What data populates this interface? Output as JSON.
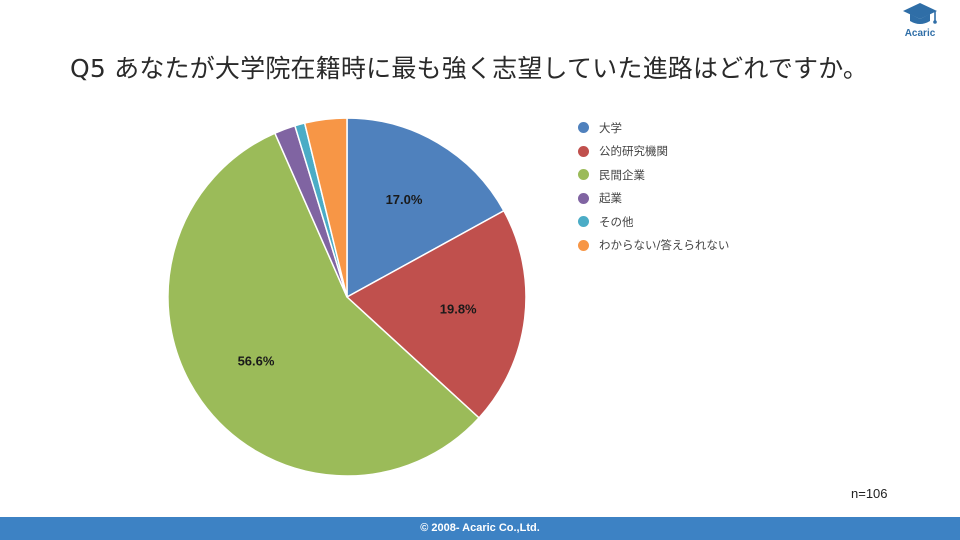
{
  "header": {
    "logo_text": "Acaric",
    "title": "Q5 あなたが大学院在籍時に最も強く志望していた進路はどれですか。"
  },
  "chart_data": {
    "type": "pie",
    "title": "Q5 あなたが大学院在籍時に最も強く志望していた進路はどれですか。",
    "categories": [
      "大学",
      "公的研究機関",
      "民間企業",
      "起業",
      "その他",
      "わからない/答えられない"
    ],
    "values": [
      17.0,
      19.8,
      56.6,
      1.9,
      0.9,
      3.8
    ],
    "data_labels": [
      "17.0%",
      "19.8%",
      "56.6%",
      "",
      "",
      ""
    ],
    "colors": [
      "#4f81bd",
      "#c0504d",
      "#9bbb59",
      "#8064a2",
      "#4bacc6",
      "#f79646"
    ],
    "start_angle": "12 o'clock",
    "direction": "clockwise",
    "legend_position": "right",
    "sample_size": "n=106"
  },
  "footer": {
    "copyright": "© 2008- Acaric Co.,Ltd."
  }
}
